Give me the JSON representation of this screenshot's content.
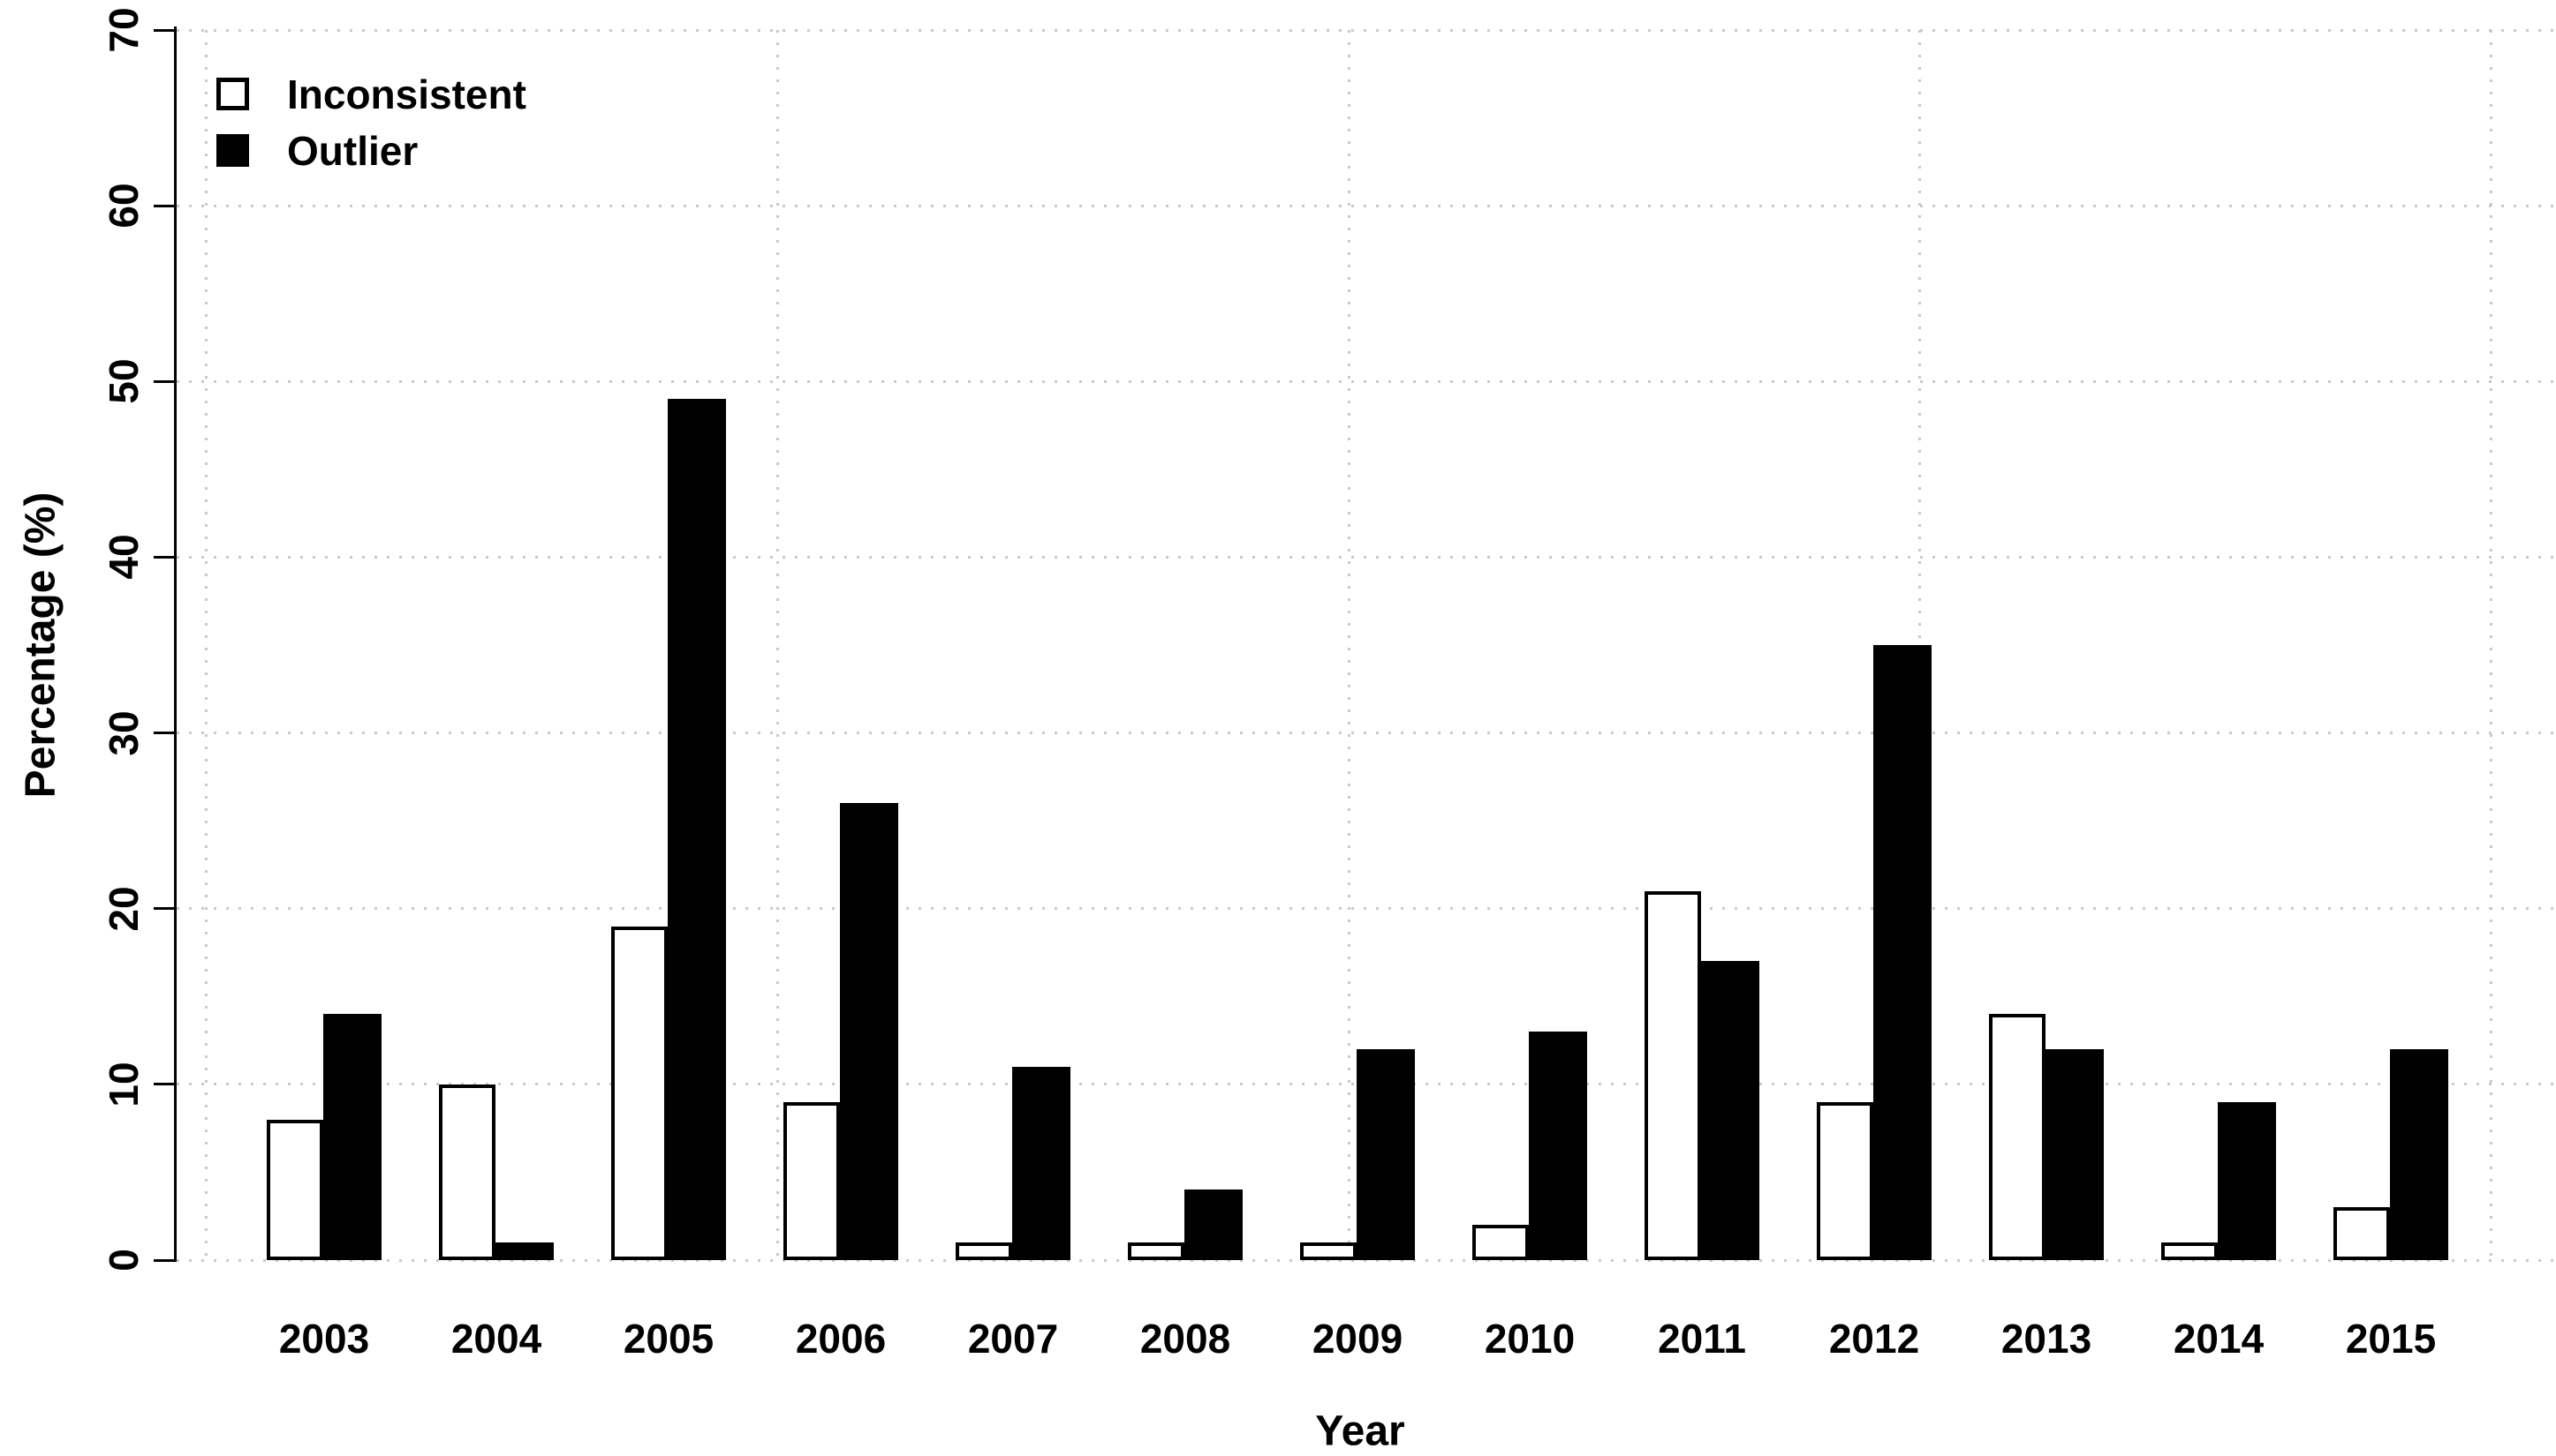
{
  "chart_data": {
    "type": "bar",
    "title": "",
    "xlabel": "Year",
    "ylabel": "Percentage (%)",
    "categories": [
      "2003",
      "2004",
      "2005",
      "2006",
      "2007",
      "2008",
      "2009",
      "2010",
      "2011",
      "2012",
      "2013",
      "2014",
      "2015"
    ],
    "series": [
      {
        "name": "Inconsistent",
        "fill": "#ffffff",
        "border": "#000000",
        "values": [
          8,
          10,
          19,
          9,
          1,
          1,
          1,
          2,
          21,
          9,
          14,
          1,
          3
        ]
      },
      {
        "name": "Outlier",
        "fill": "#000000",
        "border": "#000000",
        "values": [
          14,
          1,
          49,
          26,
          11,
          4,
          12,
          13,
          17,
          35,
          12,
          9,
          12
        ]
      }
    ],
    "ylim": [
      0,
      70
    ],
    "ytick_step": 10,
    "yticks": [
      "0",
      "10",
      "20",
      "30",
      "40",
      "50",
      "60",
      "70"
    ],
    "grid": {
      "style": "dotted",
      "color": "#c9c9c9",
      "horizontal": true,
      "vertical": true,
      "vertical_fractions": [
        0.0126,
        0.2526,
        0.4926,
        0.7326,
        0.9726
      ]
    },
    "legend_position": "top-left",
    "colors": {
      "background": "#ffffff",
      "axis": "#000000",
      "text": "#000000"
    }
  }
}
